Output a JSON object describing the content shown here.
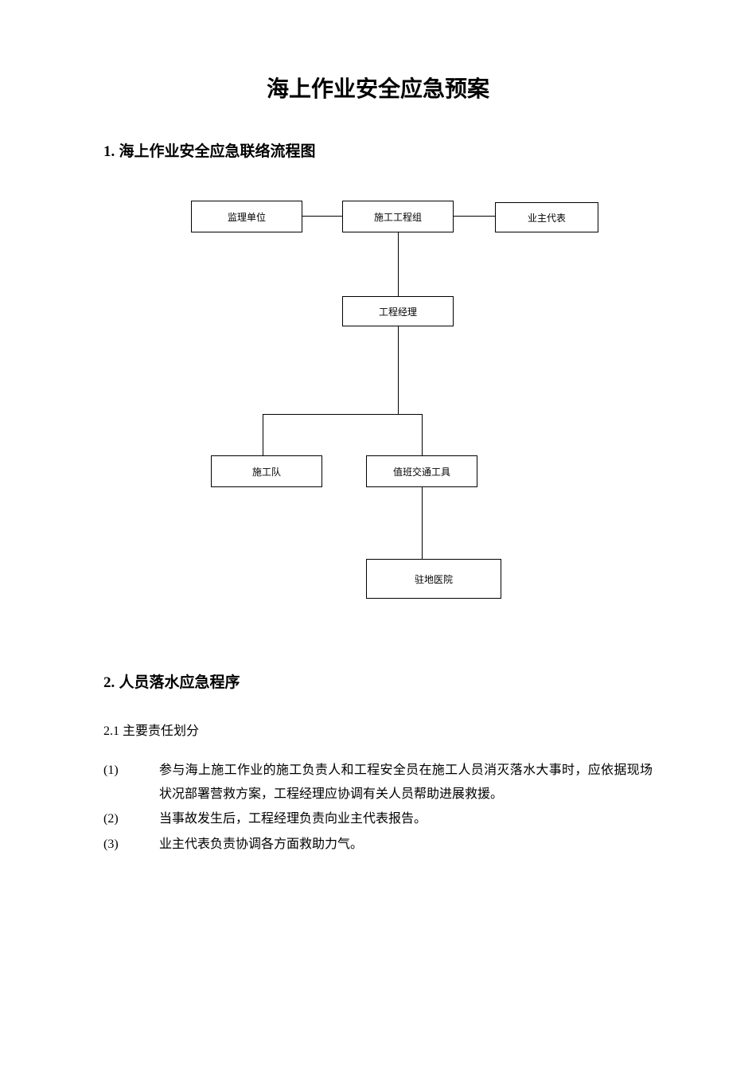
{
  "title": "海上作业安全应急预案",
  "section1": {
    "number": "1.",
    "heading": "海上作业安全应急联络流程图"
  },
  "flowchart": {
    "type": "flowchart",
    "background_color": "#ffffff",
    "border_color": "#000000",
    "line_color": "#000000",
    "node_fontsize": 12,
    "nodes": {
      "top_left": "监理单位",
      "top_center": "施工工程组",
      "top_right": "业主代表",
      "manager": "工程经理",
      "team": "施工队",
      "vehicle": "值班交通工具",
      "hospital": "驻地医院"
    },
    "edges": [
      {
        "from": "top_left",
        "to": "top_center"
      },
      {
        "from": "top_center",
        "to": "top_right"
      },
      {
        "from": "top_center",
        "to": "manager"
      },
      {
        "from": "manager",
        "to": "team"
      },
      {
        "from": "manager",
        "to": "vehicle"
      },
      {
        "from": "vehicle",
        "to": "hospital"
      }
    ]
  },
  "section2": {
    "number": "2.",
    "heading": "人员落水应急程序",
    "subsection_number": "2.1",
    "subsection_title": "主要责任划分",
    "items": [
      {
        "label": "(1)",
        "text": "参与海上施工作业的施工负责人和工程安全员在施工人员消灭落水大事时，应依据现场状况部署营救方案，工程经理应协调有关人员帮助进展救援。"
      },
      {
        "label": "(2)",
        "text": "当事故发生后，工程经理负责向业主代表报告。"
      },
      {
        "label": "(3)",
        "text": "业主代表负责协调各方面救助力气。"
      }
    ]
  }
}
